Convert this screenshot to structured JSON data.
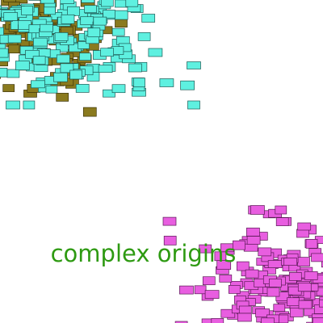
{
  "caption": {
    "text": "complex origins"
  },
  "colors": {
    "background": "#ffffff",
    "caption": "#2e9a12",
    "cyan_fill": "#5ef0e0",
    "cyan_stroke": "#1d5a55",
    "olive_fill": "#8a7a1e",
    "olive_stroke": "#3d3408",
    "magenta_fill": "#e85ee0",
    "magenta_stroke": "#5a1a55"
  },
  "clusters": [
    {
      "name": "olive",
      "fill": "olive_fill",
      "stroke": "olive_stroke",
      "tile_count": 130
    },
    {
      "name": "cyan",
      "fill": "cyan_fill",
      "stroke": "cyan_stroke",
      "tile_count": 210
    },
    {
      "name": "magenta",
      "fill": "magenta_fill",
      "stroke": "magenta_stroke",
      "tile_count": 230
    }
  ]
}
